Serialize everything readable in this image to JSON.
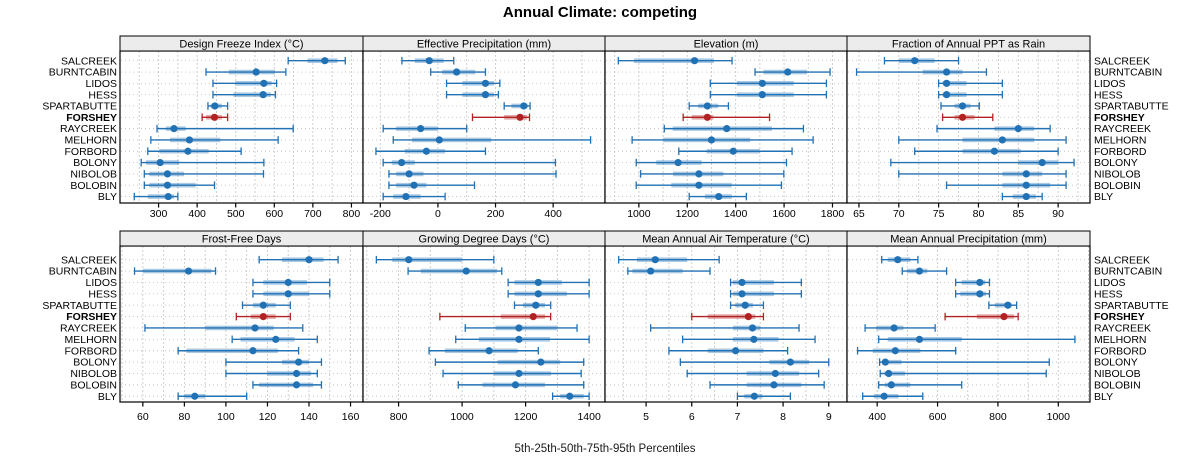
{
  "title": "Annual Climate:  competing",
  "caption": "5th-25th-50th-75th-95th Percentiles",
  "highlight_site": "FORSHEY",
  "percentile_labels": [
    5,
    25,
    50,
    75,
    95
  ],
  "colors": {
    "series": "#2171b5",
    "highlight": "#b22222",
    "band_opacity": "0.38",
    "header_bg": "#ececec",
    "border": "#000000",
    "grid": "#c9c9c9",
    "row_grid": "#c4c4c4"
  },
  "sites": [
    "SALCREEK",
    "BURNTCABIN",
    "LIDOS",
    "HESS",
    "SPARTABUTTE",
    "FORSHEY",
    "RAYCREEK",
    "MELHORN",
    "FORBORD",
    "BOLONY",
    "NIBOLOB",
    "BOLOBIN",
    "BLY"
  ],
  "chart_data": [
    {
      "type": "interval",
      "title": "Design Freeze Index (°C)",
      "xlim": [
        200,
        830
      ],
      "ticks": [
        300,
        400,
        500,
        600,
        700,
        800
      ],
      "grid_step": 50,
      "values": [
        [
          636,
          686,
          731,
          764,
          784
        ],
        [
          423,
          482,
          553,
          602,
          630
        ],
        [
          441,
          499,
          573,
          593,
          606
        ],
        [
          441,
          494,
          571,
          591,
          603
        ],
        [
          428,
          435,
          446,
          464,
          479
        ],
        [
          413,
          423,
          445,
          464,
          479
        ],
        [
          296,
          319,
          340,
          370,
          649
        ],
        [
          280,
          330,
          380,
          460,
          610
        ],
        [
          272,
          302,
          376,
          430,
          514
        ],
        [
          255,
          267,
          304,
          353,
          573
        ],
        [
          263,
          276,
          323,
          366,
          572
        ],
        [
          263,
          276,
          323,
          396,
          445
        ],
        [
          237,
          272,
          325,
          340,
          350
        ]
      ]
    },
    {
      "type": "interval",
      "title": "Effective Precipitation (mm)",
      "xlim": [
        -260,
        580
      ],
      "ticks": [
        -200,
        0,
        200,
        400
      ],
      "grid_step": 100,
      "values": [
        [
          -125,
          -80,
          -30,
          20,
          55
        ],
        [
          -25,
          15,
          65,
          130,
          165
        ],
        [
          30,
          85,
          165,
          195,
          215
        ],
        [
          30,
          85,
          165,
          195,
          210
        ],
        [
          230,
          255,
          298,
          312,
          320
        ],
        [
          120,
          230,
          285,
          310,
          318
        ],
        [
          -190,
          -145,
          -60,
          0,
          100
        ],
        [
          -155,
          -90,
          5,
          185,
          530
        ],
        [
          -215,
          -115,
          -40,
          25,
          165
        ],
        [
          -190,
          -160,
          -126,
          -80,
          408
        ],
        [
          -170,
          -145,
          -100,
          -50,
          410
        ],
        [
          -170,
          -145,
          -83,
          -40,
          127
        ],
        [
          -190,
          -155,
          -111,
          -60,
          25
        ]
      ]
    },
    {
      "type": "interval",
      "title": "Elevation (m)",
      "xlim": [
        860,
        1860
      ],
      "ticks": [
        1000,
        1200,
        1400,
        1600,
        1800
      ],
      "grid_step": 100,
      "values": [
        [
          915,
          980,
          1230,
          1310,
          1385
        ],
        [
          1480,
          1515,
          1615,
          1695,
          1790
        ],
        [
          1295,
          1405,
          1510,
          1640,
          1775
        ],
        [
          1295,
          1405,
          1510,
          1640,
          1775
        ],
        [
          1208,
          1245,
          1283,
          1328,
          1370
        ],
        [
          1183,
          1218,
          1283,
          1308,
          1540
        ],
        [
          1105,
          1140,
          1363,
          1550,
          1680
        ],
        [
          972,
          1100,
          1300,
          1460,
          1720
        ],
        [
          1165,
          1280,
          1390,
          1500,
          1633
        ],
        [
          989,
          1072,
          1162,
          1259,
          1610
        ],
        [
          1007,
          1141,
          1248,
          1349,
          1599
        ],
        [
          989,
          1134,
          1248,
          1384,
          1589
        ],
        [
          1208,
          1273,
          1330,
          1384,
          1444
        ]
      ]
    },
    {
      "type": "interval",
      "title": "Fraction of Annual PPT as Rain",
      "xlim": [
        63.5,
        94
      ],
      "ticks": [
        65,
        70,
        75,
        80,
        85,
        90
      ],
      "grid_step": 2.5,
      "values": [
        [
          68.2,
          70,
          72,
          74.5,
          77.5
        ],
        [
          64.7,
          73,
          76,
          78,
          81
        ],
        [
          75,
          75.5,
          76,
          78.5,
          83
        ],
        [
          75,
          75.5,
          76,
          78.5,
          83
        ],
        [
          75.3,
          77,
          78,
          79,
          80.1
        ],
        [
          75.5,
          77,
          78,
          79.5,
          81.8
        ],
        [
          74.8,
          82,
          85,
          87,
          89
        ],
        [
          70,
          78,
          83,
          87,
          91
        ],
        [
          72,
          78,
          82,
          85.3,
          90
        ],
        [
          69,
          85,
          88,
          90,
          92
        ],
        [
          70,
          83,
          86,
          88,
          91
        ],
        [
          76,
          83,
          86,
          89,
          91
        ],
        [
          83,
          84.3,
          86,
          87.2,
          88
        ]
      ]
    },
    {
      "type": "interval",
      "title": "Frost-Free Days",
      "xlim": [
        49,
        166
      ],
      "ticks": [
        60,
        80,
        100,
        120,
        140,
        160
      ],
      "grid_step": 10,
      "values": [
        [
          116,
          127,
          140,
          147,
          154
        ],
        [
          56,
          60,
          82,
          93,
          95
        ],
        [
          113,
          118,
          130,
          139,
          150
        ],
        [
          113,
          118,
          130,
          140,
          150
        ],
        [
          108,
          113,
          118,
          124,
          131
        ],
        [
          105,
          112,
          118,
          124,
          131
        ],
        [
          61,
          90,
          114,
          123,
          137
        ],
        [
          103,
          107,
          124,
          133,
          144
        ],
        [
          77,
          81,
          113,
          125,
          135
        ],
        [
          100,
          127,
          135,
          140,
          146
        ],
        [
          100,
          120,
          134,
          141,
          144
        ],
        [
          113,
          116,
          134,
          142,
          146
        ],
        [
          77,
          80,
          85,
          90,
          110
        ]
      ]
    },
    {
      "type": "interval",
      "title": "Growing Degree Days (°C)",
      "xlim": [
        688,
        1450
      ],
      "ticks": [
        800,
        1000,
        1200,
        1400
      ],
      "grid_step": 100,
      "values": [
        [
          730,
          780,
          832,
          1000,
          1100
        ],
        [
          830,
          870,
          1013,
          1110,
          1125
        ],
        [
          1145,
          1165,
          1240,
          1314,
          1400
        ],
        [
          1145,
          1165,
          1240,
          1330,
          1400
        ],
        [
          1165,
          1192,
          1232,
          1261,
          1279
        ],
        [
          930,
          1122,
          1224,
          1261,
          1279
        ],
        [
          1010,
          1105,
          1179,
          1300,
          1362
        ],
        [
          980,
          1053,
          1179,
          1277,
          1400
        ],
        [
          896,
          946,
          1085,
          1175,
          1240
        ],
        [
          916,
          1112,
          1248,
          1309,
          1383
        ],
        [
          940,
          1100,
          1179,
          1280,
          1375
        ],
        [
          988,
          1064,
          1168,
          1261,
          1383
        ],
        [
          1285,
          1309,
          1339,
          1383,
          1400
        ]
      ]
    },
    {
      "type": "interval",
      "title": "Mean Annual Air Temperature (°C)",
      "xlim": [
        4.1,
        9.4
      ],
      "ticks": [
        5,
        6,
        7,
        8,
        9
      ],
      "grid_step": 0.5,
      "values": [
        [
          4.4,
          4.8,
          5.2,
          5.9,
          6.6
        ],
        [
          4.6,
          4.7,
          5.1,
          5.8,
          6.4
        ],
        [
          6.85,
          6.9,
          7.1,
          7.8,
          8.4
        ],
        [
          6.85,
          6.9,
          7.1,
          7.8,
          8.4
        ],
        [
          6.85,
          6.95,
          7.17,
          7.34,
          7.57
        ],
        [
          6.0,
          6.35,
          7.24,
          7.39,
          7.57
        ],
        [
          5.1,
          6.9,
          7.33,
          7.5,
          8.35
        ],
        [
          5.8,
          6.9,
          7.36,
          7.9,
          8.7
        ],
        [
          5.5,
          6.35,
          6.96,
          7.57,
          8.1
        ],
        [
          5.75,
          7.7,
          8.16,
          8.57,
          9.0
        ],
        [
          5.9,
          7.2,
          7.83,
          8.35,
          8.78
        ],
        [
          6.4,
          7.2,
          7.8,
          8.4,
          8.9
        ],
        [
          7.0,
          7.15,
          7.37,
          7.55,
          8.16
        ]
      ]
    },
    {
      "type": "interval",
      "title": "Mean Annual Precipitation (mm)",
      "xlim": [
        300,
        1105
      ],
      "ticks": [
        400,
        600,
        800,
        1000
      ],
      "grid_step": 100,
      "values": [
        [
          415,
          435,
          468,
          510,
          535
        ],
        [
          483,
          498,
          540,
          566,
          630
        ],
        [
          660,
          680,
          740,
          758,
          772
        ],
        [
          660,
          675,
          740,
          760,
          772
        ],
        [
          770,
          790,
          833,
          845,
          862
        ],
        [
          625,
          730,
          820,
          853,
          867
        ],
        [
          360,
          397,
          456,
          487,
          592
        ],
        [
          405,
          435,
          540,
          680,
          1055
        ],
        [
          335,
          385,
          460,
          543,
          660
        ],
        [
          408,
          416,
          427,
          481,
          970
        ],
        [
          410,
          424,
          438,
          492,
          960
        ],
        [
          405,
          425,
          447,
          510,
          680
        ],
        [
          352,
          389,
          423,
          470,
          551
        ]
      ]
    }
  ]
}
